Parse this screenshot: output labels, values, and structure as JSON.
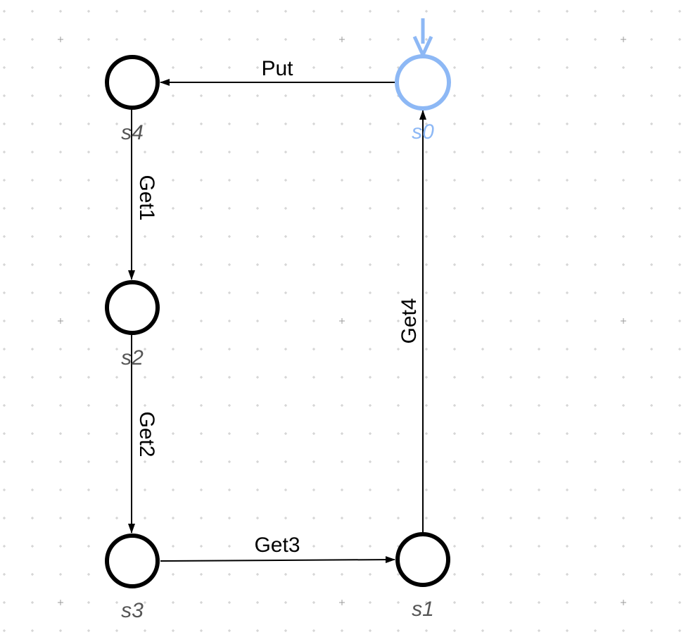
{
  "diagram": {
    "type": "state-machine",
    "initial_state": "s0",
    "states": [
      {
        "id": "s0",
        "label": "s0",
        "initial": true
      },
      {
        "id": "s4",
        "label": "s4",
        "initial": false
      },
      {
        "id": "s2",
        "label": "s2",
        "initial": false
      },
      {
        "id": "s3",
        "label": "s3",
        "initial": false
      },
      {
        "id": "s1",
        "label": "s1",
        "initial": false
      }
    ],
    "transitions": [
      {
        "from": "s0",
        "to": "s4",
        "label": "Put"
      },
      {
        "from": "s4",
        "to": "s2",
        "label": "Get1"
      },
      {
        "from": "s2",
        "to": "s3",
        "label": "Get2"
      },
      {
        "from": "s3",
        "to": "s1",
        "label": "Get3"
      },
      {
        "from": "s1",
        "to": "s0",
        "label": "Get4"
      }
    ]
  },
  "colors": {
    "initial_state": "#8db8f5",
    "state": "#000000",
    "state_label": "#555555",
    "edge": "#000000",
    "grid": "#c8c8c8"
  }
}
